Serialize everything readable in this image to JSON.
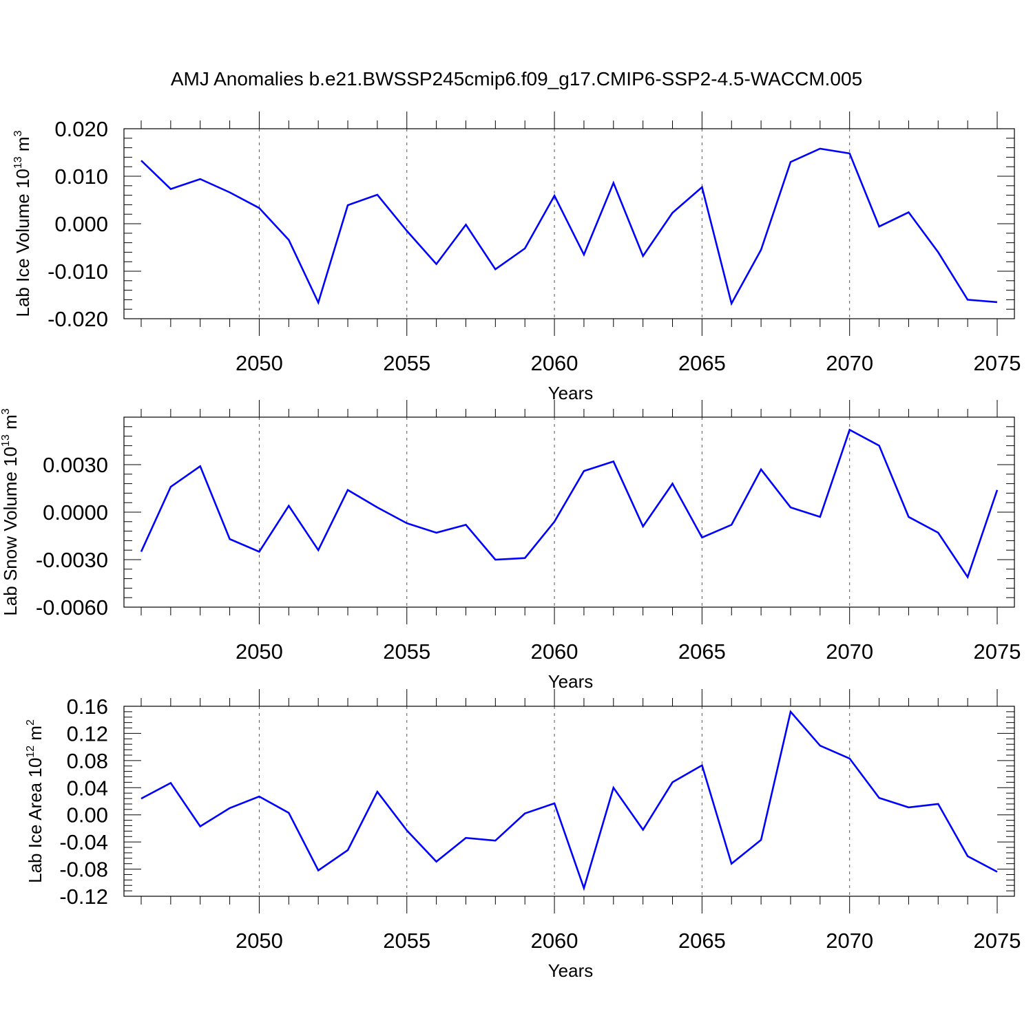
{
  "title": "AMJ Anomalies b.e21.BWSSP245cmip6.f09_g17.CMIP6-SSP2-4.5-WACCM.005",
  "line_color": "#0000ff",
  "chart_data": [
    {
      "type": "line",
      "title": "AMJ Anomalies b.e21.BWSSP245cmip6.f09_g17.CMIP6-SSP2-4.5-WACCM.005",
      "xlabel": "Years",
      "ylabel": {
        "prefix": "Lab Ice Volume 10",
        "exp1": "13",
        "unit": "m",
        "exp2": "3"
      },
      "xlim": [
        2046,
        2075
      ],
      "ylim": [
        -0.02,
        0.02
      ],
      "xticks": [
        2050,
        2055,
        2060,
        2065,
        2070,
        2075
      ],
      "yticks": [
        -0.02,
        -0.01,
        0.0,
        0.01,
        0.02
      ],
      "ytick_labels": [
        "-0.020",
        "-0.010",
        "0.000",
        "0.010",
        "0.020"
      ],
      "grid": "dashed vertical at major x ticks",
      "x": [
        2046,
        2047,
        2048,
        2049,
        2050,
        2051,
        2052,
        2053,
        2054,
        2055,
        2056,
        2057,
        2058,
        2059,
        2060,
        2061,
        2062,
        2063,
        2064,
        2065,
        2066,
        2067,
        2068,
        2069,
        2070,
        2071,
        2072,
        2073,
        2074,
        2075
      ],
      "values": [
        0.0133,
        0.0073,
        0.0094,
        0.0066,
        0.0033,
        -0.0034,
        -0.0166,
        0.0039,
        0.0061,
        -0.0015,
        -0.0085,
        -0.0002,
        -0.0096,
        -0.0052,
        0.0059,
        -0.0065,
        0.0086,
        -0.0068,
        0.0023,
        0.0077,
        -0.0168,
        -0.0055,
        0.013,
        0.0158,
        0.0148,
        -0.0006,
        0.0024,
        -0.006,
        -0.016,
        -0.0165
      ]
    },
    {
      "type": "line",
      "xlabel": "Years",
      "ylabel": {
        "prefix": "Lab Snow Volume 10",
        "exp1": "13",
        "unit": "m",
        "exp2": "3"
      },
      "xlim": [
        2046,
        2075
      ],
      "ylim": [
        -0.006,
        0.006
      ],
      "xticks": [
        2050,
        2055,
        2060,
        2065,
        2070,
        2075
      ],
      "yticks": [
        -0.006,
        -0.003,
        0.0,
        0.003
      ],
      "ytick_labels": [
        "-0.0060",
        "-0.0030",
        "0.0000",
        "0.0030"
      ],
      "grid": "dashed vertical at major x ticks",
      "x": [
        2046,
        2047,
        2048,
        2049,
        2050,
        2051,
        2052,
        2053,
        2054,
        2055,
        2056,
        2057,
        2058,
        2059,
        2060,
        2061,
        2062,
        2063,
        2064,
        2065,
        2066,
        2067,
        2068,
        2069,
        2070,
        2071,
        2072,
        2073,
        2074,
        2075
      ],
      "values": [
        -0.0025,
        0.0016,
        0.0029,
        -0.0017,
        -0.0025,
        0.0004,
        -0.0024,
        0.0014,
        0.0003,
        -0.0007,
        -0.0013,
        -0.0008,
        -0.003,
        -0.0029,
        -0.0006,
        0.0026,
        0.0032,
        -0.0009,
        0.0018,
        -0.0016,
        -0.0008,
        0.0027,
        0.0003,
        -0.0003,
        0.0052,
        0.0042,
        -0.0003,
        -0.0013,
        -0.0041,
        0.0014
      ]
    },
    {
      "type": "line",
      "xlabel": "Years",
      "ylabel": {
        "prefix": "Lab Ice Area 10",
        "exp1": "12",
        "unit": "m",
        "exp2": "2"
      },
      "xlim": [
        2046,
        2075
      ],
      "ylim": [
        -0.12,
        0.16
      ],
      "xticks": [
        2050,
        2055,
        2060,
        2065,
        2070,
        2075
      ],
      "yticks": [
        -0.12,
        -0.08,
        -0.04,
        0.0,
        0.04,
        0.08,
        0.12,
        0.16
      ],
      "ytick_labels": [
        "-0.12",
        "-0.08",
        "-0.04",
        "0.00",
        "0.04",
        "0.08",
        "0.12",
        "0.16"
      ],
      "grid": "dashed vertical at major x ticks",
      "x": [
        2046,
        2047,
        2048,
        2049,
        2050,
        2051,
        2052,
        2053,
        2054,
        2055,
        2056,
        2057,
        2058,
        2059,
        2060,
        2061,
        2062,
        2063,
        2064,
        2065,
        2066,
        2067,
        2068,
        2069,
        2070,
        2071,
        2072,
        2073,
        2074,
        2075
      ],
      "values": [
        0.024,
        0.047,
        -0.017,
        0.01,
        0.027,
        0.003,
        -0.082,
        -0.052,
        0.034,
        -0.023,
        -0.069,
        -0.034,
        -0.038,
        0.002,
        0.017,
        -0.108,
        0.04,
        -0.022,
        0.048,
        0.073,
        -0.072,
        -0.037,
        0.152,
        0.102,
        0.083,
        0.025,
        0.011,
        0.016,
        -0.061,
        -0.084
      ]
    }
  ]
}
